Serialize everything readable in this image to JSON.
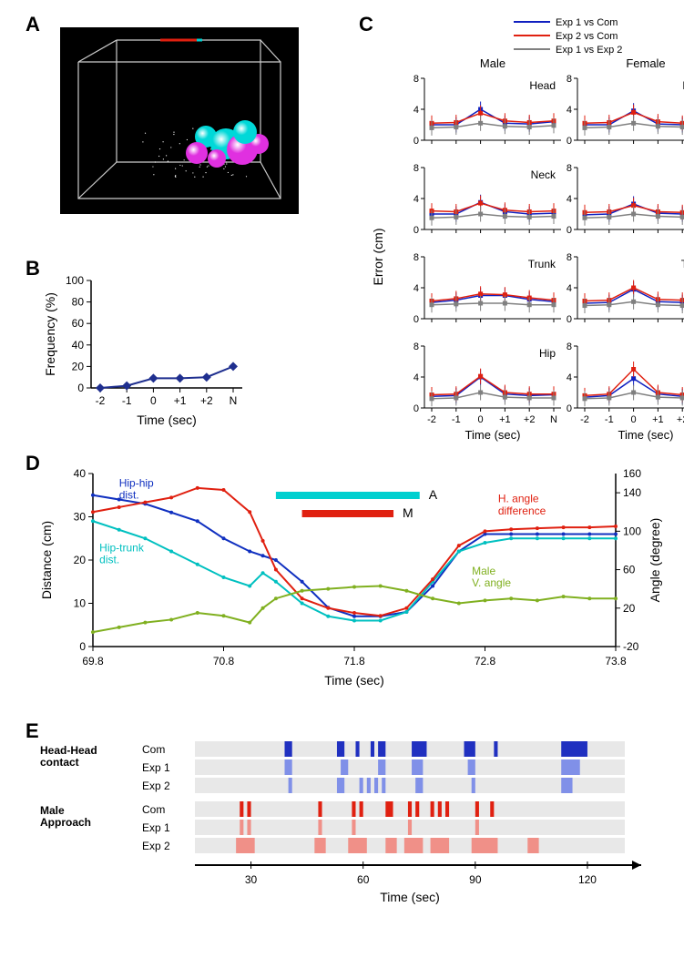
{
  "panelLabels": {
    "A": "A",
    "B": "B",
    "C": "C",
    "D": "D",
    "E": "E"
  },
  "panelA": {
    "bg": "#000000",
    "box_color": "#cccccc",
    "spheres": {
      "cyan": "#00d8d8",
      "magenta": "#e030e0"
    }
  },
  "panelB": {
    "ylabel": "Frequency (%)",
    "xlabel": "Time (sec)",
    "yticks": [
      0,
      20,
      40,
      60,
      80,
      100
    ],
    "xticks": [
      "-2",
      "-1",
      "0",
      "+1",
      "+2",
      "N"
    ],
    "values": [
      0,
      2,
      9,
      9,
      10,
      20
    ],
    "line_color": "#1f2f8f",
    "marker": "diamond",
    "font_size": 12,
    "axis_color": "#000000"
  },
  "panelC": {
    "legend": [
      {
        "label": "Exp 1 vs Com",
        "color": "#1020c0"
      },
      {
        "label": "Exp 2 vs Com",
        "color": "#e02010"
      },
      {
        "label": "Exp 1 vs Exp 2",
        "color": "#808080"
      }
    ],
    "columns": [
      "Male",
      "Female"
    ],
    "rows": [
      "Head",
      "Neck",
      "Trunk",
      "Hip"
    ],
    "ylabel": "Error (cm)",
    "xlabel": "Time (sec)",
    "yticks": [
      0,
      4,
      8
    ],
    "xticks": [
      "-2",
      "-1",
      "0",
      "+1",
      "+2",
      "N"
    ],
    "ylim": [
      0,
      8
    ],
    "data": {
      "Male": {
        "Head": {
          "e1c": [
            2.0,
            2.0,
            4.0,
            2.2,
            2.1,
            2.4
          ],
          "e2c": [
            2.2,
            2.3,
            3.5,
            2.5,
            2.3,
            2.5
          ],
          "e12": [
            1.6,
            1.7,
            2.2,
            1.8,
            1.7,
            1.9
          ]
        },
        "Neck": {
          "e1c": [
            2.0,
            2.0,
            3.5,
            2.3,
            2.0,
            2.1
          ],
          "e2c": [
            2.4,
            2.3,
            3.4,
            2.5,
            2.3,
            2.4
          ],
          "e12": [
            1.5,
            1.6,
            2.0,
            1.7,
            1.6,
            1.7
          ]
        },
        "Trunk": {
          "e1c": [
            2.1,
            2.4,
            3.0,
            3.0,
            2.5,
            2.2
          ],
          "e2c": [
            2.3,
            2.6,
            3.2,
            3.1,
            2.7,
            2.4
          ],
          "e12": [
            1.8,
            1.9,
            2.0,
            2.0,
            1.8,
            1.8
          ]
        },
        "Hip": {
          "e1c": [
            1.5,
            1.6,
            4.0,
            1.8,
            1.6,
            1.7
          ],
          "e2c": [
            1.7,
            1.8,
            4.1,
            2.0,
            1.8,
            1.8
          ],
          "e12": [
            1.2,
            1.3,
            2.0,
            1.4,
            1.3,
            1.3
          ]
        }
      },
      "Female": {
        "Head": {
          "e1c": [
            2.0,
            2.0,
            3.8,
            2.1,
            2.0,
            2.2
          ],
          "e2c": [
            2.2,
            2.3,
            3.6,
            2.4,
            2.2,
            2.3
          ],
          "e12": [
            1.6,
            1.7,
            2.2,
            1.8,
            1.7,
            1.8
          ]
        },
        "Neck": {
          "e1c": [
            1.9,
            2.0,
            3.3,
            2.1,
            2.0,
            2.1
          ],
          "e2c": [
            2.2,
            2.3,
            3.1,
            2.3,
            2.2,
            2.3
          ],
          "e12": [
            1.5,
            1.6,
            2.0,
            1.7,
            1.6,
            1.7
          ]
        },
        "Trunk": {
          "e1c": [
            2.0,
            2.1,
            3.8,
            2.2,
            2.1,
            2.2
          ],
          "e2c": [
            2.3,
            2.4,
            4.0,
            2.5,
            2.4,
            2.4
          ],
          "e12": [
            1.7,
            1.8,
            2.2,
            1.8,
            1.7,
            1.8
          ]
        },
        "Hip": {
          "e1c": [
            1.4,
            1.6,
            3.8,
            1.8,
            1.5,
            1.6
          ],
          "e2c": [
            1.6,
            1.8,
            5.0,
            2.0,
            1.7,
            1.8
          ],
          "e12": [
            1.2,
            1.3,
            2.0,
            1.4,
            1.3,
            1.3
          ]
        }
      }
    },
    "err": 1.0,
    "font_size": 11
  },
  "panelD": {
    "ylabel_left": "Distance (cm)",
    "ylabel_right": "Angle (degree)",
    "xlabel": "Time (sec)",
    "xlim": [
      69.8,
      73.8
    ],
    "xticks": [
      69.8,
      70.8,
      71.8,
      72.8,
      73.8
    ],
    "yticks_left": [
      0,
      10,
      20,
      30,
      40
    ],
    "yticks_right": [
      -20,
      20,
      60,
      100,
      140,
      160
    ],
    "ylim_left": [
      0,
      40
    ],
    "ylim_right": [
      -20,
      160
    ],
    "labels": {
      "hiphip": {
        "text": "Hip-hip\ndist.",
        "color": "#1030c0"
      },
      "hiptrunk": {
        "text": "Hip-trunk\ndist.",
        "color": "#00c0c0"
      },
      "hangle": {
        "text": "H. angle\ndifference",
        "color": "#e02010"
      },
      "vangle": {
        "text": "Male\nV. angle",
        "color": "#80b020"
      },
      "A": {
        "text": "A",
        "bar_color": "#00d0d0"
      },
      "M": {
        "text": "M",
        "bar_color": "#e02010"
      }
    },
    "series": {
      "hiphip": {
        "color": "#1030c0",
        "axis": "left",
        "pts": [
          [
            69.8,
            35
          ],
          [
            70.0,
            34
          ],
          [
            70.2,
            33
          ],
          [
            70.4,
            31
          ],
          [
            70.6,
            29
          ],
          [
            70.8,
            25
          ],
          [
            71.0,
            22
          ],
          [
            71.1,
            21
          ],
          [
            71.2,
            20
          ],
          [
            71.4,
            15
          ],
          [
            71.6,
            9
          ],
          [
            71.8,
            7
          ],
          [
            72.0,
            7
          ],
          [
            72.2,
            8
          ],
          [
            72.4,
            14
          ],
          [
            72.6,
            22
          ],
          [
            72.8,
            26
          ],
          [
            73.0,
            26
          ],
          [
            73.2,
            26
          ],
          [
            73.4,
            26
          ],
          [
            73.6,
            26
          ],
          [
            73.8,
            26
          ]
        ]
      },
      "hiptrunk": {
        "color": "#00c0c0",
        "axis": "left",
        "pts": [
          [
            69.8,
            29
          ],
          [
            70.0,
            27
          ],
          [
            70.2,
            25
          ],
          [
            70.4,
            22
          ],
          [
            70.6,
            19
          ],
          [
            70.8,
            16
          ],
          [
            71.0,
            14
          ],
          [
            71.1,
            17
          ],
          [
            71.2,
            15
          ],
          [
            71.4,
            10
          ],
          [
            71.6,
            7
          ],
          [
            71.8,
            6
          ],
          [
            72.0,
            6
          ],
          [
            72.2,
            8
          ],
          [
            72.4,
            15
          ],
          [
            72.6,
            22
          ],
          [
            72.8,
            24
          ],
          [
            73.0,
            25
          ],
          [
            73.2,
            25
          ],
          [
            73.4,
            25
          ],
          [
            73.6,
            25
          ],
          [
            73.8,
            25
          ]
        ]
      },
      "hangle": {
        "color": "#e02010",
        "axis": "right",
        "pts": [
          [
            69.8,
            120
          ],
          [
            70.0,
            125
          ],
          [
            70.2,
            130
          ],
          [
            70.4,
            135
          ],
          [
            70.6,
            145
          ],
          [
            70.8,
            143
          ],
          [
            71.0,
            120
          ],
          [
            71.1,
            90
          ],
          [
            71.2,
            60
          ],
          [
            71.4,
            30
          ],
          [
            71.6,
            20
          ],
          [
            71.8,
            15
          ],
          [
            72.0,
            12
          ],
          [
            72.2,
            20
          ],
          [
            72.4,
            50
          ],
          [
            72.6,
            85
          ],
          [
            72.8,
            100
          ],
          [
            73.0,
            102
          ],
          [
            73.2,
            103
          ],
          [
            73.4,
            104
          ],
          [
            73.6,
            104
          ],
          [
            73.8,
            105
          ]
        ]
      },
      "vangle": {
        "color": "#80b020",
        "axis": "right",
        "pts": [
          [
            69.8,
            -5
          ],
          [
            70.0,
            0
          ],
          [
            70.2,
            5
          ],
          [
            70.4,
            8
          ],
          [
            70.6,
            15
          ],
          [
            70.8,
            12
          ],
          [
            71.0,
            5
          ],
          [
            71.1,
            20
          ],
          [
            71.2,
            30
          ],
          [
            71.4,
            38
          ],
          [
            71.6,
            40
          ],
          [
            71.8,
            42
          ],
          [
            72.0,
            43
          ],
          [
            72.2,
            38
          ],
          [
            72.4,
            30
          ],
          [
            72.6,
            25
          ],
          [
            72.8,
            28
          ],
          [
            73.0,
            30
          ],
          [
            73.2,
            28
          ],
          [
            73.4,
            32
          ],
          [
            73.6,
            30
          ],
          [
            73.8,
            30
          ]
        ]
      }
    },
    "bars": {
      "A": [
        71.2,
        72.3
      ],
      "M": [
        71.4,
        72.1
      ]
    },
    "font_size": 12
  },
  "panelE": {
    "xlabel": "Time (sec)",
    "xticks": [
      30,
      60,
      90,
      120
    ],
    "xlim": [
      15,
      130
    ],
    "rowGroups": [
      {
        "title": "Head-Head\ncontact",
        "rows": [
          "Com",
          "Exp 1",
          "Exp 2"
        ],
        "color": "#2030c0",
        "lightColor": "#8090e8"
      },
      {
        "title": "Male\nApproach",
        "rows": [
          "Com",
          "Exp 1",
          "Exp 2"
        ],
        "color": "#e02010",
        "lightColor": "#f09088"
      }
    ],
    "events": {
      "HH_Com": [
        [
          39,
          41
        ],
        [
          53,
          55
        ],
        [
          58,
          59
        ],
        [
          62,
          63
        ],
        [
          64,
          66
        ],
        [
          73,
          77
        ],
        [
          87,
          90
        ],
        [
          95,
          96
        ],
        [
          113,
          120
        ]
      ],
      "HH_Exp1": [
        [
          39,
          41
        ],
        [
          54,
          56
        ],
        [
          64,
          66
        ],
        [
          73,
          76
        ],
        [
          88,
          90
        ],
        [
          113,
          118
        ]
      ],
      "HH_Exp2": [
        [
          40,
          41
        ],
        [
          53,
          55
        ],
        [
          59,
          60
        ],
        [
          61,
          62
        ],
        [
          63,
          64
        ],
        [
          65,
          66
        ],
        [
          74,
          76
        ],
        [
          89,
          90
        ],
        [
          113,
          116
        ]
      ],
      "MA_Com": [
        [
          27,
          28
        ],
        [
          29,
          30
        ],
        [
          48,
          49
        ],
        [
          57,
          58
        ],
        [
          59,
          60
        ],
        [
          66,
          68
        ],
        [
          72,
          73
        ],
        [
          74,
          75
        ],
        [
          78,
          79
        ],
        [
          80,
          81
        ],
        [
          82,
          83
        ],
        [
          90,
          91
        ],
        [
          94,
          95
        ]
      ],
      "MA_Exp1": [
        [
          27,
          28
        ],
        [
          29,
          30
        ],
        [
          48,
          49
        ],
        [
          57,
          58
        ],
        [
          72,
          73
        ],
        [
          90,
          91
        ]
      ],
      "MA_Exp2": [
        [
          26,
          31
        ],
        [
          47,
          50
        ],
        [
          56,
          61
        ],
        [
          66,
          69
        ],
        [
          71,
          76
        ],
        [
          78,
          83
        ],
        [
          89,
          96
        ],
        [
          104,
          107
        ]
      ]
    },
    "track_bg": "#e8e8e8",
    "font_size": 12
  }
}
